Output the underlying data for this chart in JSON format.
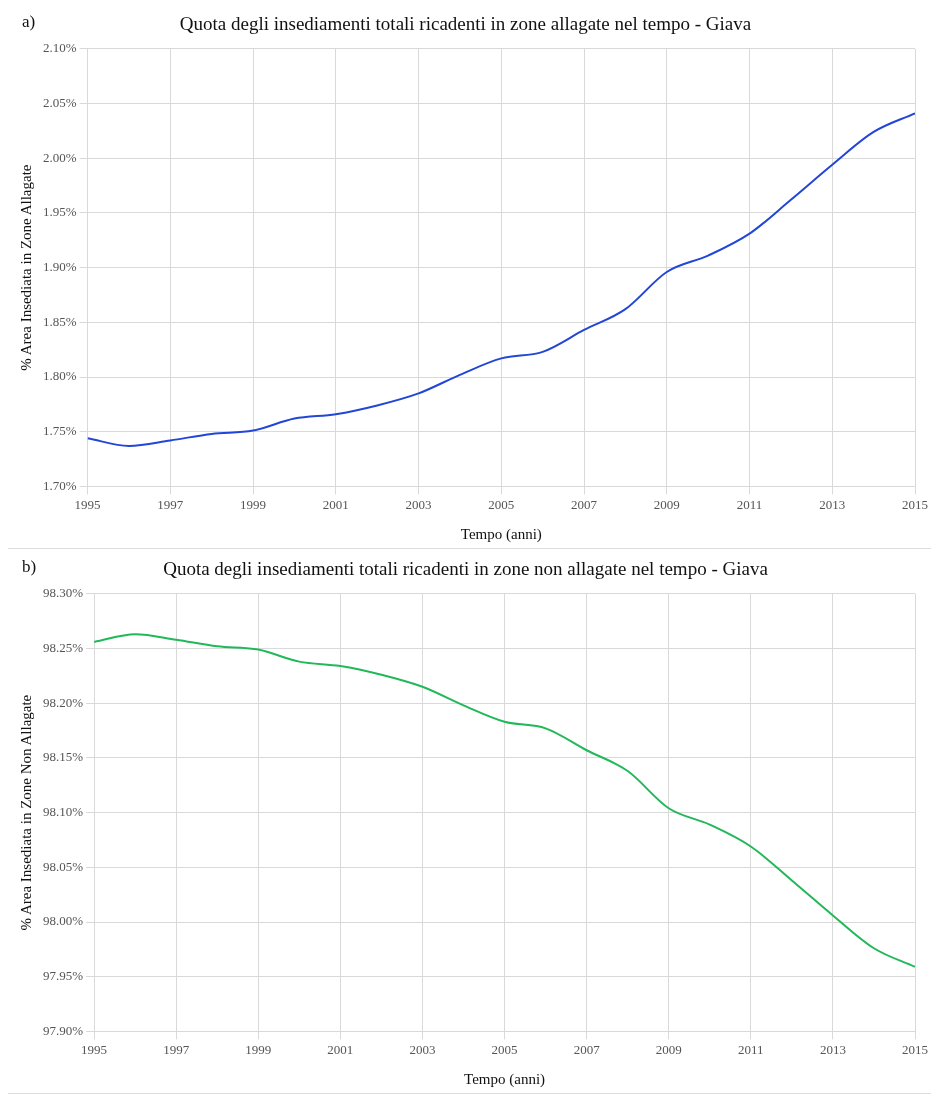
{
  "chart_data": [
    {
      "type": "line",
      "title": "Quota degli insediamenti totali ricadenti in zone allagate nel tempo - Giava",
      "xlabel": "Tempo (anni)",
      "ylabel": "% Area Insediata in Zone Allagate",
      "annotations": [
        "a)"
      ],
      "x": [
        1995,
        1996,
        1997,
        1998,
        1999,
        2000,
        2001,
        2002,
        2003,
        2004,
        2005,
        2006,
        2007,
        2008,
        2009,
        2010,
        2011,
        2012,
        2013,
        2014,
        2015
      ],
      "series": [
        {
          "color": "#2246d6",
          "values": [
            1.744,
            1.737,
            1.742,
            1.748,
            1.751,
            1.762,
            1.766,
            1.774,
            1.785,
            1.802,
            1.817,
            1.823,
            1.843,
            1.862,
            1.896,
            1.911,
            1.931,
            1.962,
            1.994,
            2.024,
            2.041
          ]
        }
      ],
      "xlim": [
        1995,
        2015
      ],
      "xticks": [
        1995,
        1997,
        1999,
        2001,
        2003,
        2005,
        2007,
        2009,
        2011,
        2013,
        2015
      ],
      "ylim": [
        1.7,
        2.1
      ],
      "yticks": [
        {
          "value": 1.7,
          "label": "1.70%"
        },
        {
          "value": 1.75,
          "label": "1.75%"
        },
        {
          "value": 1.8,
          "label": "1.80%"
        },
        {
          "value": 1.85,
          "label": "1.85%"
        },
        {
          "value": 1.9,
          "label": "1.90%"
        },
        {
          "value": 1.95,
          "label": "1.95%"
        },
        {
          "value": 2.0,
          "label": "2.00%"
        },
        {
          "value": 2.05,
          "label": "2.05%"
        },
        {
          "value": 2.1,
          "label": "2.10%"
        }
      ],
      "grid": true
    },
    {
      "type": "line",
      "title": "Quota degli insediamenti totali ricadenti in zone non allagate nel tempo - Giava",
      "xlabel": "Tempo (anni)",
      "ylabel": "% Area Insediata in Zone Non Allagate",
      "annotations": [
        "b)"
      ],
      "x": [
        1995,
        1996,
        1997,
        1998,
        1999,
        2000,
        2001,
        2002,
        2003,
        2004,
        2005,
        2006,
        2007,
        2008,
        2009,
        2010,
        2011,
        2012,
        2013,
        2014,
        2015
      ],
      "series": [
        {
          "color": "#22b85a",
          "values": [
            98.256,
            98.263,
            98.258,
            98.252,
            98.249,
            98.238,
            98.234,
            98.226,
            98.215,
            98.198,
            98.183,
            98.177,
            98.157,
            98.138,
            98.104,
            98.089,
            98.069,
            98.038,
            98.006,
            97.976,
            97.959
          ]
        }
      ],
      "xlim": [
        1995,
        2015
      ],
      "xticks": [
        1995,
        1997,
        1999,
        2001,
        2003,
        2005,
        2007,
        2009,
        2011,
        2013,
        2015
      ],
      "ylim": [
        97.9,
        98.3
      ],
      "yticks": [
        {
          "value": 97.9,
          "label": "97.90%"
        },
        {
          "value": 97.95,
          "label": "97.95%"
        },
        {
          "value": 98.0,
          "label": "98.00%"
        },
        {
          "value": 98.05,
          "label": "98.05%"
        },
        {
          "value": 98.1,
          "label": "98.10%"
        },
        {
          "value": 98.15,
          "label": "98.15%"
        },
        {
          "value": 98.2,
          "label": "98.20%"
        },
        {
          "value": 98.25,
          "label": "98.25%"
        },
        {
          "value": 98.3,
          "label": "98.30%"
        }
      ],
      "grid": true
    }
  ]
}
